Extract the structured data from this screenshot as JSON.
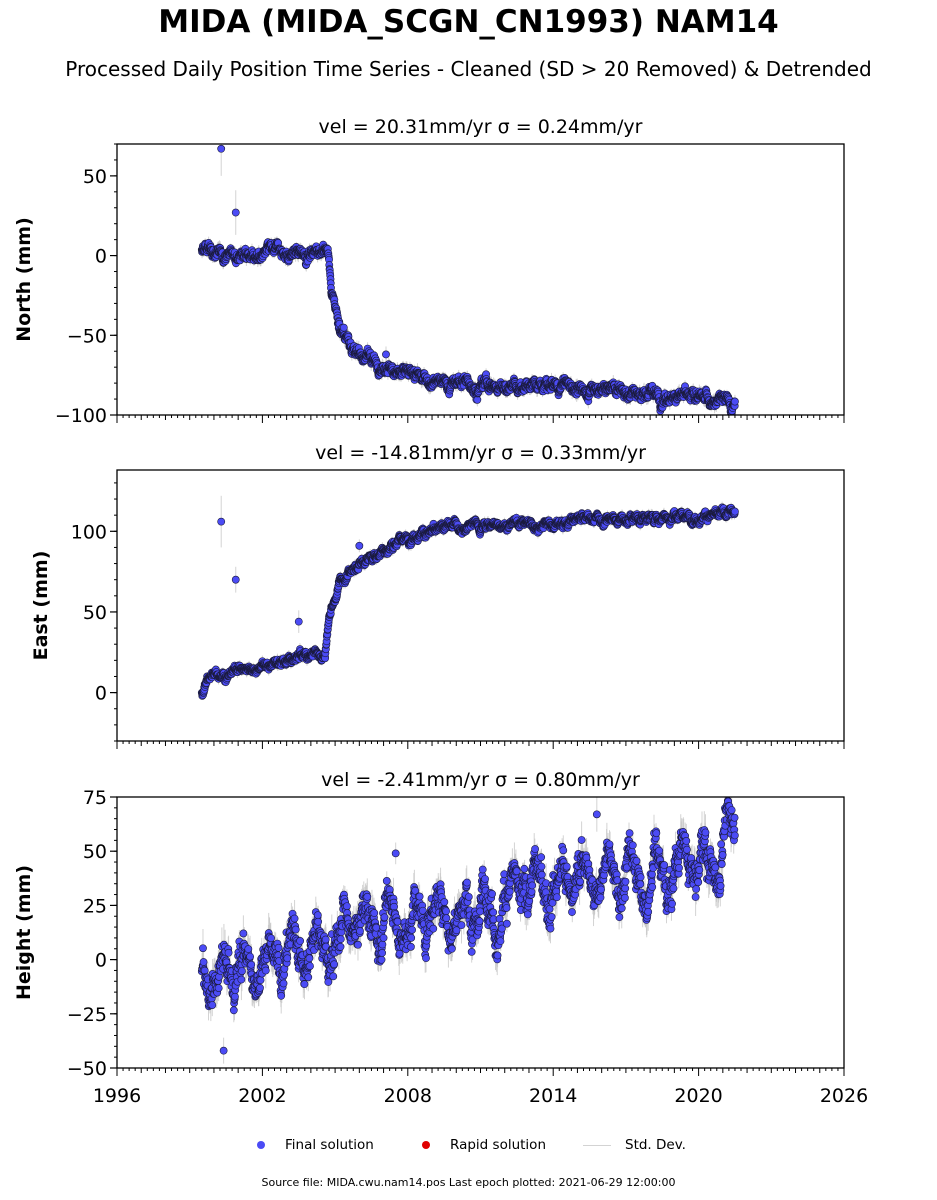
{
  "figure": {
    "title": "MIDA (MIDA_SCGN_CN1993) NAM14",
    "subtitle": "Processed Daily Position Time Series - Cleaned (SD > 20 Removed) & Detrended",
    "footer": "Source file: MIDA.cwu.nam14.pos  Last epoch plotted: 2021-06-29 12:00:00"
  },
  "legend": {
    "final": "Final solution",
    "rapid": "Rapid solution",
    "std": "Std. Dev."
  },
  "colors": {
    "final": "#4b4bf5",
    "rapid": "#e00000",
    "std": "#c8c8c8",
    "marker_edge": "#1a1a3a"
  },
  "chart_data": [
    {
      "type": "scatter",
      "title": "vel = 20.31mm/yr   σ = 0.24mm/yr",
      "ylabel": "North (mm)",
      "ylim": [
        -100,
        70
      ],
      "xlim": [
        1996,
        2026
      ],
      "yticks": [
        "50",
        "0",
        "−50",
        "−100"
      ],
      "ytick_values": [
        50,
        0,
        -50,
        -100
      ],
      "x_start": 1999.5,
      "x_end": 2021.5,
      "outliers": [
        {
          "x": 2000.3,
          "y": 67,
          "err": 17
        },
        {
          "x": 2000.9,
          "y": 27,
          "err": 14
        },
        {
          "x": 2007.1,
          "y": -62,
          "err": 5
        }
      ],
      "profile": [
        [
          1999.5,
          2
        ],
        [
          2004.7,
          2
        ],
        [
          2004.85,
          -20
        ],
        [
          2005.2,
          -45
        ],
        [
          2006.0,
          -62
        ],
        [
          2007.5,
          -72
        ],
        [
          2009.0,
          -78
        ],
        [
          2012.0,
          -82
        ],
        [
          2016.0,
          -84
        ],
        [
          2018.0,
          -87
        ],
        [
          2021.5,
          -92
        ]
      ],
      "noise": 3.5,
      "stride": 0.01
    },
    {
      "type": "scatter",
      "title": "vel = -14.81mm/yr   σ = 0.33mm/yr",
      "ylabel": "East (mm)",
      "ylim": [
        -30,
        138
      ],
      "xlim": [
        1996,
        2026
      ],
      "yticks": [
        "100",
        "50",
        "0"
      ],
      "ytick_values": [
        100,
        50,
        0
      ],
      "x_start": 1999.5,
      "x_end": 2021.5,
      "outliers": [
        {
          "x": 2000.3,
          "y": 106,
          "err": 16
        },
        {
          "x": 2000.9,
          "y": 70,
          "err": 8
        },
        {
          "x": 2003.5,
          "y": 44,
          "err": 7
        },
        {
          "x": 2006.0,
          "y": 91,
          "err": 4
        }
      ],
      "profile": [
        [
          1999.5,
          -2
        ],
        [
          1999.8,
          10
        ],
        [
          2002.0,
          17
        ],
        [
          2004.6,
          24
        ],
        [
          2004.75,
          45
        ],
        [
          2005.2,
          70
        ],
        [
          2006.5,
          84
        ],
        [
          2008.0,
          97
        ],
        [
          2010.0,
          102
        ],
        [
          2014.0,
          106
        ],
        [
          2021.5,
          110
        ]
      ],
      "noise": 2.5,
      "stride": 0.01
    },
    {
      "type": "scatter",
      "title": "vel = -2.41mm/yr   σ = 0.80mm/yr",
      "ylabel": "Height (mm)",
      "ylim": [
        -50,
        75
      ],
      "xlim": [
        1996,
        2026
      ],
      "yticks": [
        "75",
        "50",
        "25",
        "0",
        "−25",
        "−50"
      ],
      "ytick_values": [
        75,
        50,
        25,
        0,
        -25,
        -50
      ],
      "x_start": 1999.5,
      "x_end": 2021.5,
      "xticks": [
        "1996",
        "2002",
        "2008",
        "2014",
        "2020",
        "2026"
      ],
      "xtick_values": [
        1996,
        2002,
        2008,
        2014,
        2020,
        2026
      ],
      "outliers": [
        {
          "x": 2000.4,
          "y": -42,
          "err": 6
        },
        {
          "x": 2007.5,
          "y": 49,
          "err": 5
        },
        {
          "x": 2015.8,
          "y": 67,
          "err": 8
        }
      ],
      "profile": [
        [
          1999.5,
          -8
        ],
        [
          2001.0,
          -5
        ],
        [
          2003.0,
          5
        ],
        [
          2006.0,
          16
        ],
        [
          2009.0,
          20
        ],
        [
          2012.0,
          28
        ],
        [
          2015.0,
          37
        ],
        [
          2018.0,
          40
        ],
        [
          2020.0,
          46
        ],
        [
          2021.5,
          60
        ]
      ],
      "noise": 9,
      "stride": 0.012
    }
  ]
}
